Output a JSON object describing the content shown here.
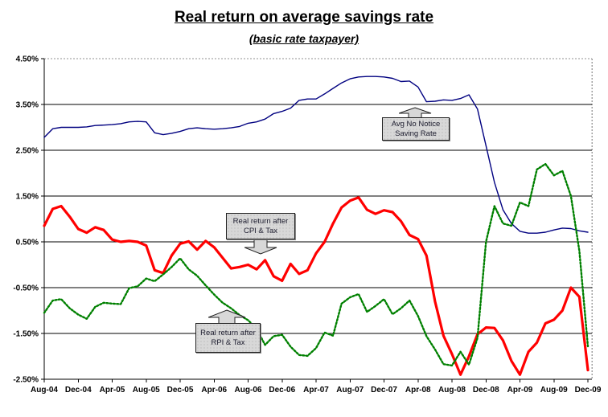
{
  "title": "Real return on average savings rate",
  "subtitle": "(basic rate taxpayer)",
  "chart_data": {
    "type": "line",
    "title": "Real return on average savings rate",
    "subtitle": "(basic rate taxpayer)",
    "grid": true,
    "legend": false,
    "x_axis": {
      "tick_labels": [
        "Aug-04",
        "Dec-04",
        "Apr-05",
        "Aug-05",
        "Dec-05",
        "Apr-06",
        "Aug-06",
        "Dec-06",
        "Apr-07",
        "Aug-07",
        "Dec-07",
        "Apr-08",
        "Aug-08",
        "Dec-08",
        "Apr-09",
        "Aug-09",
        "Dec-09"
      ],
      "tick_every_n_months": 4
    },
    "y_axis": {
      "min": -2.5,
      "max": 4.5,
      "tick_step": 1.0,
      "tick_labels": [
        "4.50%",
        "3.50%",
        "2.50%",
        "1.50%",
        "0.50%",
        "-0.50%",
        "-1.50%",
        "-2.50%"
      ]
    },
    "months": [
      "Aug-04",
      "Sep-04",
      "Oct-04",
      "Nov-04",
      "Dec-04",
      "Jan-05",
      "Feb-05",
      "Mar-05",
      "Apr-05",
      "May-05",
      "Jun-05",
      "Jul-05",
      "Aug-05",
      "Sep-05",
      "Oct-05",
      "Nov-05",
      "Dec-05",
      "Jan-06",
      "Feb-06",
      "Mar-06",
      "Apr-06",
      "May-06",
      "Jun-06",
      "Jul-06",
      "Aug-06",
      "Sep-06",
      "Oct-06",
      "Nov-06",
      "Dec-06",
      "Jan-07",
      "Feb-07",
      "Mar-07",
      "Apr-07",
      "May-07",
      "Jun-07",
      "Jul-07",
      "Aug-07",
      "Sep-07",
      "Oct-07",
      "Nov-07",
      "Dec-07",
      "Jan-08",
      "Feb-08",
      "Mar-08",
      "Apr-08",
      "May-08",
      "Jun-08",
      "Jul-08",
      "Aug-08",
      "Sep-08",
      "Oct-08",
      "Nov-08",
      "Dec-08",
      "Jan-09",
      "Feb-09",
      "Mar-09",
      "Apr-09",
      "May-09",
      "Jun-09",
      "Jul-09",
      "Aug-09",
      "Sep-09",
      "Oct-09",
      "Nov-09",
      "Dec-09"
    ],
    "series": [
      {
        "name": "Avg No Notice Saving Rate",
        "color": "#000080",
        "style": "solid",
        "width": 1.4,
        "values": [
          2.78,
          2.97,
          3.0,
          3.0,
          3.0,
          3.01,
          3.04,
          3.05,
          3.06,
          3.08,
          3.12,
          3.13,
          3.12,
          2.88,
          2.84,
          2.87,
          2.91,
          2.97,
          2.99,
          2.97,
          2.96,
          2.97,
          2.99,
          3.02,
          3.09,
          3.12,
          3.18,
          3.3,
          3.35,
          3.42,
          3.59,
          3.62,
          3.62,
          3.73,
          3.85,
          3.97,
          4.06,
          4.1,
          4.11,
          4.11,
          4.1,
          4.07,
          4.0,
          4.01,
          3.88,
          3.56,
          3.57,
          3.6,
          3.59,
          3.63,
          3.71,
          3.4,
          2.6,
          1.8,
          1.2,
          0.9,
          0.73,
          0.69,
          0.69,
          0.71,
          0.76,
          0.8,
          0.79,
          0.74,
          0.71
        ]
      },
      {
        "name": "Real return after CPI & Tax",
        "color": "#ff0000",
        "style": "solid",
        "width": 3.2,
        "values": [
          0.85,
          1.22,
          1.28,
          1.05,
          0.78,
          0.7,
          0.82,
          0.76,
          0.55,
          0.5,
          0.52,
          0.5,
          0.42,
          -0.12,
          -0.18,
          0.2,
          0.46,
          0.51,
          0.33,
          0.52,
          0.38,
          0.15,
          -0.08,
          -0.05,
          0.0,
          -0.1,
          0.1,
          -0.25,
          -0.35,
          0.02,
          -0.2,
          -0.12,
          0.25,
          0.5,
          0.9,
          1.25,
          1.4,
          1.47,
          1.2,
          1.11,
          1.19,
          1.15,
          0.95,
          0.65,
          0.56,
          0.2,
          -0.8,
          -1.55,
          -1.95,
          -2.4,
          -2.0,
          -1.52,
          -1.37,
          -1.38,
          -1.65,
          -2.1,
          -2.4,
          -1.9,
          -1.7,
          -1.28,
          -1.2,
          -1.0,
          -0.5,
          -0.7,
          -2.3
        ]
      },
      {
        "name": "Real return after RPI & Tax",
        "color": "#008000",
        "style": "dotted",
        "width": 2.4,
        "values": [
          -1.05,
          -0.78,
          -0.75,
          -0.95,
          -1.09,
          -1.18,
          -0.92,
          -0.83,
          -0.85,
          -0.86,
          -0.51,
          -0.47,
          -0.3,
          -0.36,
          -0.21,
          -0.05,
          0.14,
          -0.1,
          -0.24,
          -0.45,
          -0.65,
          -0.83,
          -0.95,
          -1.1,
          -1.21,
          -1.4,
          -1.75,
          -1.56,
          -1.53,
          -1.79,
          -1.97,
          -1.99,
          -1.82,
          -1.48,
          -1.55,
          -0.85,
          -0.71,
          -0.64,
          -1.03,
          -0.9,
          -0.75,
          -1.08,
          -0.95,
          -0.78,
          -1.12,
          -1.56,
          -1.85,
          -2.17,
          -2.2,
          -1.9,
          -2.18,
          -1.6,
          0.5,
          1.28,
          0.9,
          0.85,
          1.36,
          1.28,
          2.08,
          2.2,
          1.95,
          2.05,
          1.5,
          0.3,
          -1.78
        ]
      }
    ],
    "annotations": [
      {
        "id": "avg-no-notice",
        "lines": [
          "Avg No Notice",
          "Saving Rate"
        ],
        "arrow": "up"
      },
      {
        "id": "cpi-tax",
        "lines": [
          "Real return after",
          "CPI & Tax"
        ],
        "arrow": "down"
      },
      {
        "id": "rpi-tax",
        "lines": [
          "Real return after",
          "RPI & Tax"
        ],
        "arrow": "up"
      }
    ]
  }
}
